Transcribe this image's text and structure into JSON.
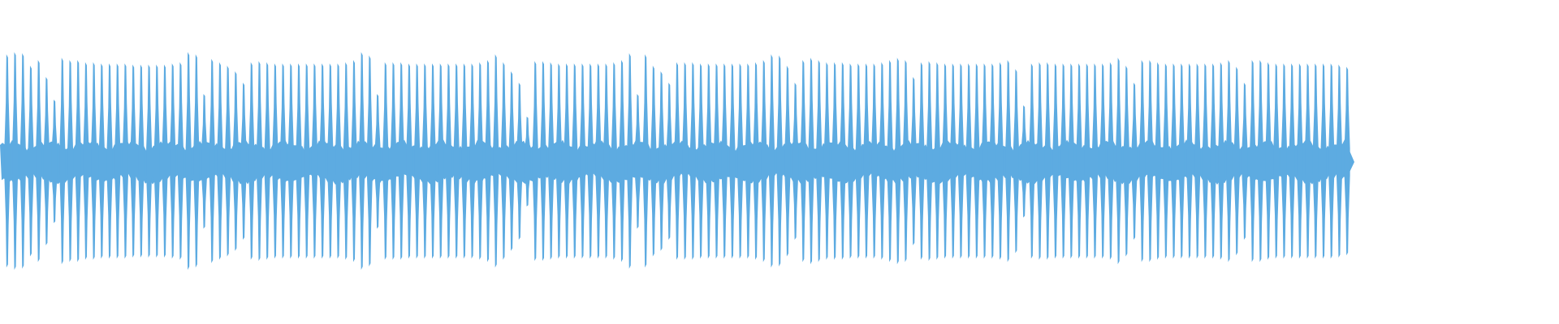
{
  "chart_data": {
    "type": "area",
    "title": "",
    "xlabel": "",
    "ylabel": "",
    "ylim": [
      -1,
      1
    ],
    "grid": false,
    "color": "#5dabe1",
    "baseline_amplitude": 0.15,
    "pulse_peaks": [
      0.95,
      0.97,
      0.96,
      0.85,
      0.9,
      0.75,
      0.55,
      0.92,
      0.9,
      0.9,
      0.88,
      0.88,
      0.87,
      0.87,
      0.87,
      0.87,
      0.86,
      0.86,
      0.86,
      0.86,
      0.86,
      0.87,
      0.88,
      0.97,
      0.95,
      0.6,
      0.91,
      0.88,
      0.85,
      0.8,
      0.7,
      0.88,
      0.89,
      0.88,
      0.87,
      0.87,
      0.87,
      0.87,
      0.87,
      0.87,
      0.87,
      0.87,
      0.87,
      0.88,
      0.9,
      0.97,
      0.94,
      0.6,
      0.88,
      0.88,
      0.88,
      0.87,
      0.87,
      0.87,
      0.87,
      0.87,
      0.87,
      0.87,
      0.87,
      0.87,
      0.88,
      0.9,
      0.95,
      0.88,
      0.8,
      0.7,
      0.4,
      0.89,
      0.89,
      0.88,
      0.87,
      0.87,
      0.87,
      0.87,
      0.87,
      0.87,
      0.87,
      0.88,
      0.9,
      0.96,
      0.6,
      0.95,
      0.85,
      0.8,
      0.7,
      0.88,
      0.88,
      0.88,
      0.87,
      0.87,
      0.87,
      0.87,
      0.87,
      0.87,
      0.87,
      0.88,
      0.9,
      0.95,
      0.94,
      0.85,
      0.7,
      0.9,
      0.92,
      0.9,
      0.88,
      0.88,
      0.88,
      0.87,
      0.87,
      0.87,
      0.87,
      0.88,
      0.9,
      0.92,
      0.9,
      0.75,
      0.88,
      0.89,
      0.88,
      0.87,
      0.87,
      0.87,
      0.87,
      0.87,
      0.87,
      0.87,
      0.88,
      0.9,
      0.82,
      0.5,
      0.87,
      0.88,
      0.88,
      0.87,
      0.87,
      0.87,
      0.87,
      0.87,
      0.87,
      0.87,
      0.88,
      0.92,
      0.85,
      0.7,
      0.9,
      0.9,
      0.88,
      0.87,
      0.87,
      0.87,
      0.87,
      0.87,
      0.87,
      0.87,
      0.88,
      0.9,
      0.84,
      0.7,
      0.9,
      0.9,
      0.88,
      0.87,
      0.87,
      0.87,
      0.87,
      0.87,
      0.87,
      0.87,
      0.87,
      0.86,
      0.84
    ]
  }
}
